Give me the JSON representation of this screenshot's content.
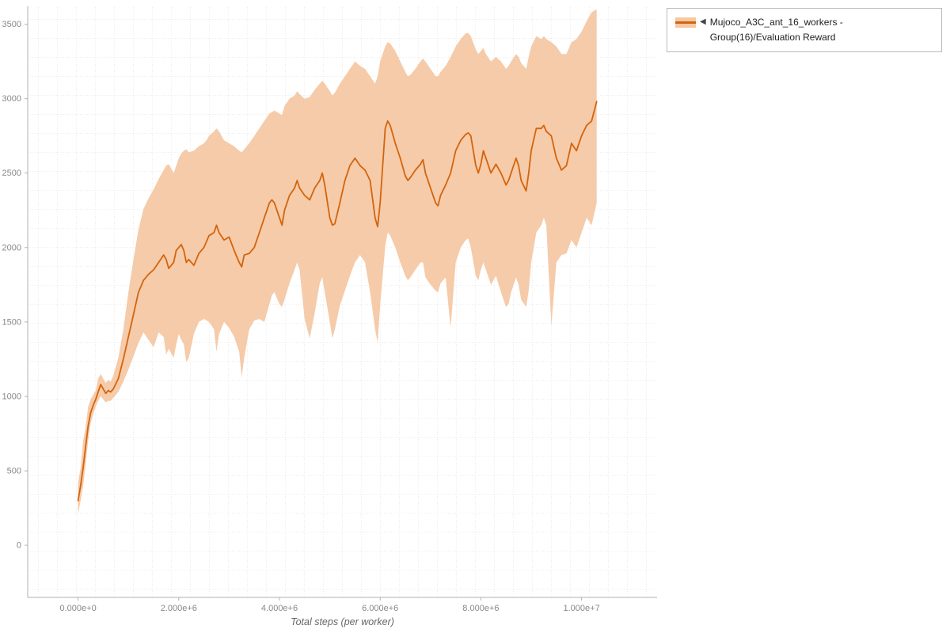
{
  "page": {
    "background": "#ffffff"
  },
  "legend": {
    "collapse_icon": "◀",
    "label": "Mujoco_A3C_ant_16_workers - Group(16)/Evaluation Reward"
  },
  "chart_data": {
    "type": "line",
    "title": "",
    "xlabel": "Total steps (per worker)",
    "ylabel": "",
    "xlim": [
      -1000000,
      11500000
    ],
    "ylim": [
      -350,
      3620
    ],
    "x_unit_multiplier": 1000000,
    "grid": {
      "show": true,
      "spacing_px": 24,
      "color": "#cccccc",
      "style": "dotted"
    },
    "axis_color": "#b0b0b0",
    "tick_label_color": "#888888",
    "xlabel_color": "#666666",
    "legend_position": "top-right",
    "x_ticks": [
      {
        "v": 0,
        "label": "0.000e+0"
      },
      {
        "v": 2000000,
        "label": "2.000e+6"
      },
      {
        "v": 4000000,
        "label": "4.000e+6"
      },
      {
        "v": 6000000,
        "label": "6.000e+6"
      },
      {
        "v": 8000000,
        "label": "8.000e+6"
      },
      {
        "v": 10000000,
        "label": "1.000e+7"
      }
    ],
    "y_ticks": [
      {
        "v": 0,
        "label": "0"
      },
      {
        "v": 500,
        "label": "500"
      },
      {
        "v": 1000,
        "label": "1000"
      },
      {
        "v": 1500,
        "label": "1500"
      },
      {
        "v": 2000,
        "label": "2000"
      },
      {
        "v": 2500,
        "label": "2500"
      },
      {
        "v": 3000,
        "label": "3000"
      },
      {
        "v": 3500,
        "label": "3500"
      }
    ],
    "series": [
      {
        "name": "Mujoco_A3C_ant_16_workers - Group(16)/Evaluation Reward",
        "line_color": "#d4640c",
        "band_color": "#f4c8a4",
        "columns": [
          "x_million_steps",
          "lower",
          "mean",
          "upper"
        ],
        "points": [
          [
            0.0,
            210,
            300,
            420
          ],
          [
            0.05,
            300,
            400,
            520
          ],
          [
            0.1,
            400,
            520,
            700
          ],
          [
            0.15,
            540,
            660,
            790
          ],
          [
            0.2,
            700,
            800,
            930
          ],
          [
            0.25,
            820,
            890,
            980
          ],
          [
            0.3,
            880,
            940,
            1010
          ],
          [
            0.35,
            930,
            980,
            1040
          ],
          [
            0.4,
            970,
            1030,
            1120
          ],
          [
            0.45,
            1000,
            1080,
            1150
          ],
          [
            0.5,
            980,
            1050,
            1120
          ],
          [
            0.55,
            960,
            1020,
            1090
          ],
          [
            0.6,
            970,
            1040,
            1110
          ],
          [
            0.65,
            970,
            1030,
            1100
          ],
          [
            0.7,
            990,
            1050,
            1140
          ],
          [
            0.8,
            1030,
            1120,
            1260
          ],
          [
            0.9,
            1100,
            1250,
            1450
          ],
          [
            1.0,
            1180,
            1400,
            1700
          ],
          [
            1.1,
            1270,
            1550,
            1920
          ],
          [
            1.2,
            1360,
            1700,
            2120
          ],
          [
            1.3,
            1430,
            1780,
            2260
          ],
          [
            1.4,
            1380,
            1820,
            2330
          ],
          [
            1.5,
            1330,
            1850,
            2390
          ],
          [
            1.6,
            1430,
            1900,
            2460
          ],
          [
            1.7,
            1400,
            1950,
            2520
          ],
          [
            1.75,
            1280,
            1920,
            2550
          ],
          [
            1.8,
            1320,
            1860,
            2560
          ],
          [
            1.9,
            1260,
            1900,
            2500
          ],
          [
            1.95,
            1350,
            1980,
            2550
          ],
          [
            2.0,
            1420,
            2000,
            2600
          ],
          [
            2.05,
            1380,
            2020,
            2630
          ],
          [
            2.1,
            1350,
            1980,
            2650
          ],
          [
            2.15,
            1230,
            1900,
            2660
          ],
          [
            2.2,
            1260,
            1920,
            2640
          ],
          [
            2.3,
            1420,
            1880,
            2650
          ],
          [
            2.4,
            1500,
            1960,
            2680
          ],
          [
            2.5,
            1520,
            2000,
            2700
          ],
          [
            2.55,
            1510,
            2040,
            2720
          ],
          [
            2.6,
            1500,
            2080,
            2750
          ],
          [
            2.7,
            1450,
            2100,
            2780
          ],
          [
            2.75,
            1300,
            2150,
            2800
          ],
          [
            2.8,
            1420,
            2100,
            2780
          ],
          [
            2.9,
            1500,
            2050,
            2720
          ],
          [
            3.0,
            1460,
            2070,
            2700
          ],
          [
            3.1,
            1400,
            1980,
            2680
          ],
          [
            3.2,
            1300,
            1900,
            2650
          ],
          [
            3.25,
            1130,
            1870,
            2640
          ],
          [
            3.3,
            1260,
            1950,
            2660
          ],
          [
            3.4,
            1450,
            1960,
            2700
          ],
          [
            3.5,
            1510,
            2000,
            2750
          ],
          [
            3.6,
            1520,
            2100,
            2800
          ],
          [
            3.7,
            1500,
            2200,
            2850
          ],
          [
            3.8,
            1620,
            2300,
            2900
          ],
          [
            3.85,
            1680,
            2320,
            2910
          ],
          [
            3.9,
            1700,
            2300,
            2920
          ],
          [
            4.0,
            1620,
            2200,
            2900
          ],
          [
            4.05,
            1600,
            2150,
            2890
          ],
          [
            4.1,
            1650,
            2250,
            2950
          ],
          [
            4.2,
            1760,
            2350,
            3000
          ],
          [
            4.3,
            1850,
            2400,
            3020
          ],
          [
            4.35,
            1900,
            2450,
            3050
          ],
          [
            4.4,
            1850,
            2400,
            3030
          ],
          [
            4.5,
            1520,
            2350,
            3000
          ],
          [
            4.6,
            1390,
            2320,
            3010
          ],
          [
            4.7,
            1560,
            2400,
            3060
          ],
          [
            4.8,
            1760,
            2450,
            3100
          ],
          [
            4.85,
            1800,
            2500,
            3120
          ],
          [
            4.9,
            1700,
            2420,
            3100
          ],
          [
            5.0,
            1500,
            2200,
            3050
          ],
          [
            5.05,
            1390,
            2150,
            3020
          ],
          [
            5.1,
            1450,
            2160,
            3040
          ],
          [
            5.2,
            1610,
            2300,
            3100
          ],
          [
            5.3,
            1710,
            2450,
            3150
          ],
          [
            5.4,
            1810,
            2550,
            3200
          ],
          [
            5.5,
            1900,
            2600,
            3250
          ],
          [
            5.6,
            1950,
            2550,
            3220
          ],
          [
            5.7,
            1900,
            2520,
            3200
          ],
          [
            5.8,
            1700,
            2450,
            3150
          ],
          [
            5.9,
            1450,
            2200,
            3100
          ],
          [
            5.95,
            1360,
            2140,
            3150
          ],
          [
            6.0,
            1610,
            2300,
            3250
          ],
          [
            6.1,
            2010,
            2800,
            3350
          ],
          [
            6.15,
            2100,
            2850,
            3380
          ],
          [
            6.2,
            2080,
            2820,
            3370
          ],
          [
            6.3,
            2000,
            2700,
            3320
          ],
          [
            6.4,
            1900,
            2600,
            3250
          ],
          [
            6.5,
            1810,
            2480,
            3180
          ],
          [
            6.55,
            1780,
            2450,
            3150
          ],
          [
            6.6,
            1800,
            2470,
            3160
          ],
          [
            6.7,
            1850,
            2520,
            3200
          ],
          [
            6.8,
            1900,
            2560,
            3250
          ],
          [
            6.85,
            1900,
            2590,
            3270
          ],
          [
            6.9,
            1800,
            2500,
            3250
          ],
          [
            7.0,
            1750,
            2400,
            3200
          ],
          [
            7.1,
            1710,
            2300,
            3150
          ],
          [
            7.15,
            1700,
            2280,
            3150
          ],
          [
            7.2,
            1760,
            2350,
            3180
          ],
          [
            7.3,
            1800,
            2420,
            3220
          ],
          [
            7.4,
            1460,
            2500,
            3280
          ],
          [
            7.5,
            1900,
            2650,
            3350
          ],
          [
            7.6,
            2000,
            2720,
            3400
          ],
          [
            7.7,
            2050,
            2760,
            3440
          ],
          [
            7.75,
            2060,
            2770,
            3440
          ],
          [
            7.8,
            2000,
            2750,
            3420
          ],
          [
            7.9,
            1810,
            2550,
            3330
          ],
          [
            7.95,
            1780,
            2500,
            3300
          ],
          [
            8.0,
            1850,
            2560,
            3320
          ],
          [
            8.05,
            1900,
            2650,
            3340
          ],
          [
            8.1,
            1850,
            2600,
            3300
          ],
          [
            8.2,
            1750,
            2500,
            3250
          ],
          [
            8.3,
            1810,
            2560,
            3280
          ],
          [
            8.4,
            1700,
            2500,
            3250
          ],
          [
            8.5,
            1600,
            2420,
            3200
          ],
          [
            8.55,
            1620,
            2450,
            3220
          ],
          [
            8.6,
            1700,
            2500,
            3250
          ],
          [
            8.7,
            1800,
            2600,
            3300
          ],
          [
            8.75,
            1750,
            2550,
            3280
          ],
          [
            8.8,
            1650,
            2450,
            3240
          ],
          [
            8.9,
            1600,
            2380,
            3200
          ],
          [
            8.95,
            1710,
            2500,
            3280
          ],
          [
            9.0,
            1900,
            2650,
            3350
          ],
          [
            9.1,
            2100,
            2800,
            3420
          ],
          [
            9.2,
            2150,
            2800,
            3400
          ],
          [
            9.25,
            2200,
            2820,
            3420
          ],
          [
            9.3,
            2150,
            2780,
            3400
          ],
          [
            9.4,
            1470,
            2750,
            3380
          ],
          [
            9.5,
            1900,
            2600,
            3350
          ],
          [
            9.6,
            1950,
            2520,
            3300
          ],
          [
            9.7,
            1960,
            2550,
            3300
          ],
          [
            9.8,
            2050,
            2700,
            3380
          ],
          [
            9.9,
            2000,
            2650,
            3400
          ],
          [
            10.0,
            2100,
            2750,
            3450
          ],
          [
            10.1,
            2200,
            2820,
            3520
          ],
          [
            10.2,
            2150,
            2850,
            3580
          ],
          [
            10.3,
            2300,
            2980,
            3600
          ]
        ]
      }
    ]
  }
}
